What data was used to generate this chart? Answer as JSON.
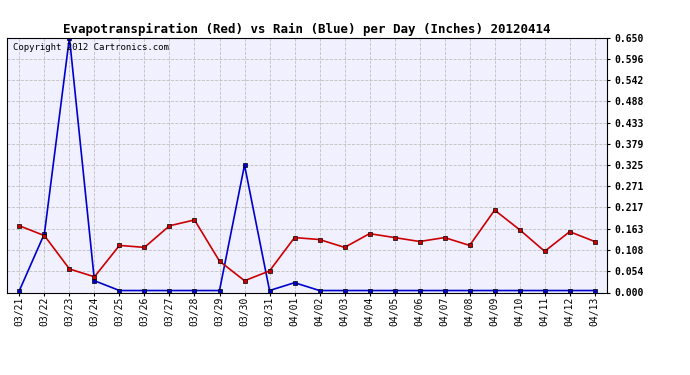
{
  "title": "Evapotranspiration (Red) vs Rain (Blue) per Day (Inches) 20120414",
  "copyright": "Copyright 2012 Cartronics.com",
  "dates": [
    "03/21",
    "03/22",
    "03/23",
    "03/24",
    "03/25",
    "03/26",
    "03/27",
    "03/28",
    "03/29",
    "03/30",
    "03/31",
    "04/01",
    "04/02",
    "04/03",
    "04/04",
    "04/05",
    "04/06",
    "04/07",
    "04/08",
    "04/09",
    "04/10",
    "04/11",
    "04/12",
    "04/13"
  ],
  "rain": [
    0.005,
    0.15,
    0.65,
    0.03,
    0.005,
    0.005,
    0.005,
    0.005,
    0.005,
    0.325,
    0.005,
    0.025,
    0.005,
    0.005,
    0.005,
    0.005,
    0.005,
    0.005,
    0.005,
    0.005,
    0.005,
    0.005,
    0.005,
    0.005
  ],
  "et": [
    0.17,
    0.145,
    0.06,
    0.04,
    0.12,
    0.115,
    0.17,
    0.185,
    0.08,
    0.03,
    0.055,
    0.14,
    0.135,
    0.115,
    0.15,
    0.14,
    0.13,
    0.14,
    0.12,
    0.21,
    0.16,
    0.105,
    0.155,
    0.13
  ],
  "ylim": [
    0.0,
    0.65
  ],
  "yticks": [
    0.0,
    0.054,
    0.108,
    0.163,
    0.217,
    0.271,
    0.325,
    0.379,
    0.433,
    0.488,
    0.542,
    0.596,
    0.65
  ],
  "rain_color": "#0000cc",
  "et_color": "#cc0000",
  "bg_color": "#ffffff",
  "plot_bg_color": "#f0f0ff",
  "grid_color": "#bbbbbb",
  "title_fontsize": 9,
  "tick_fontsize": 7,
  "copyright_fontsize": 6.5
}
